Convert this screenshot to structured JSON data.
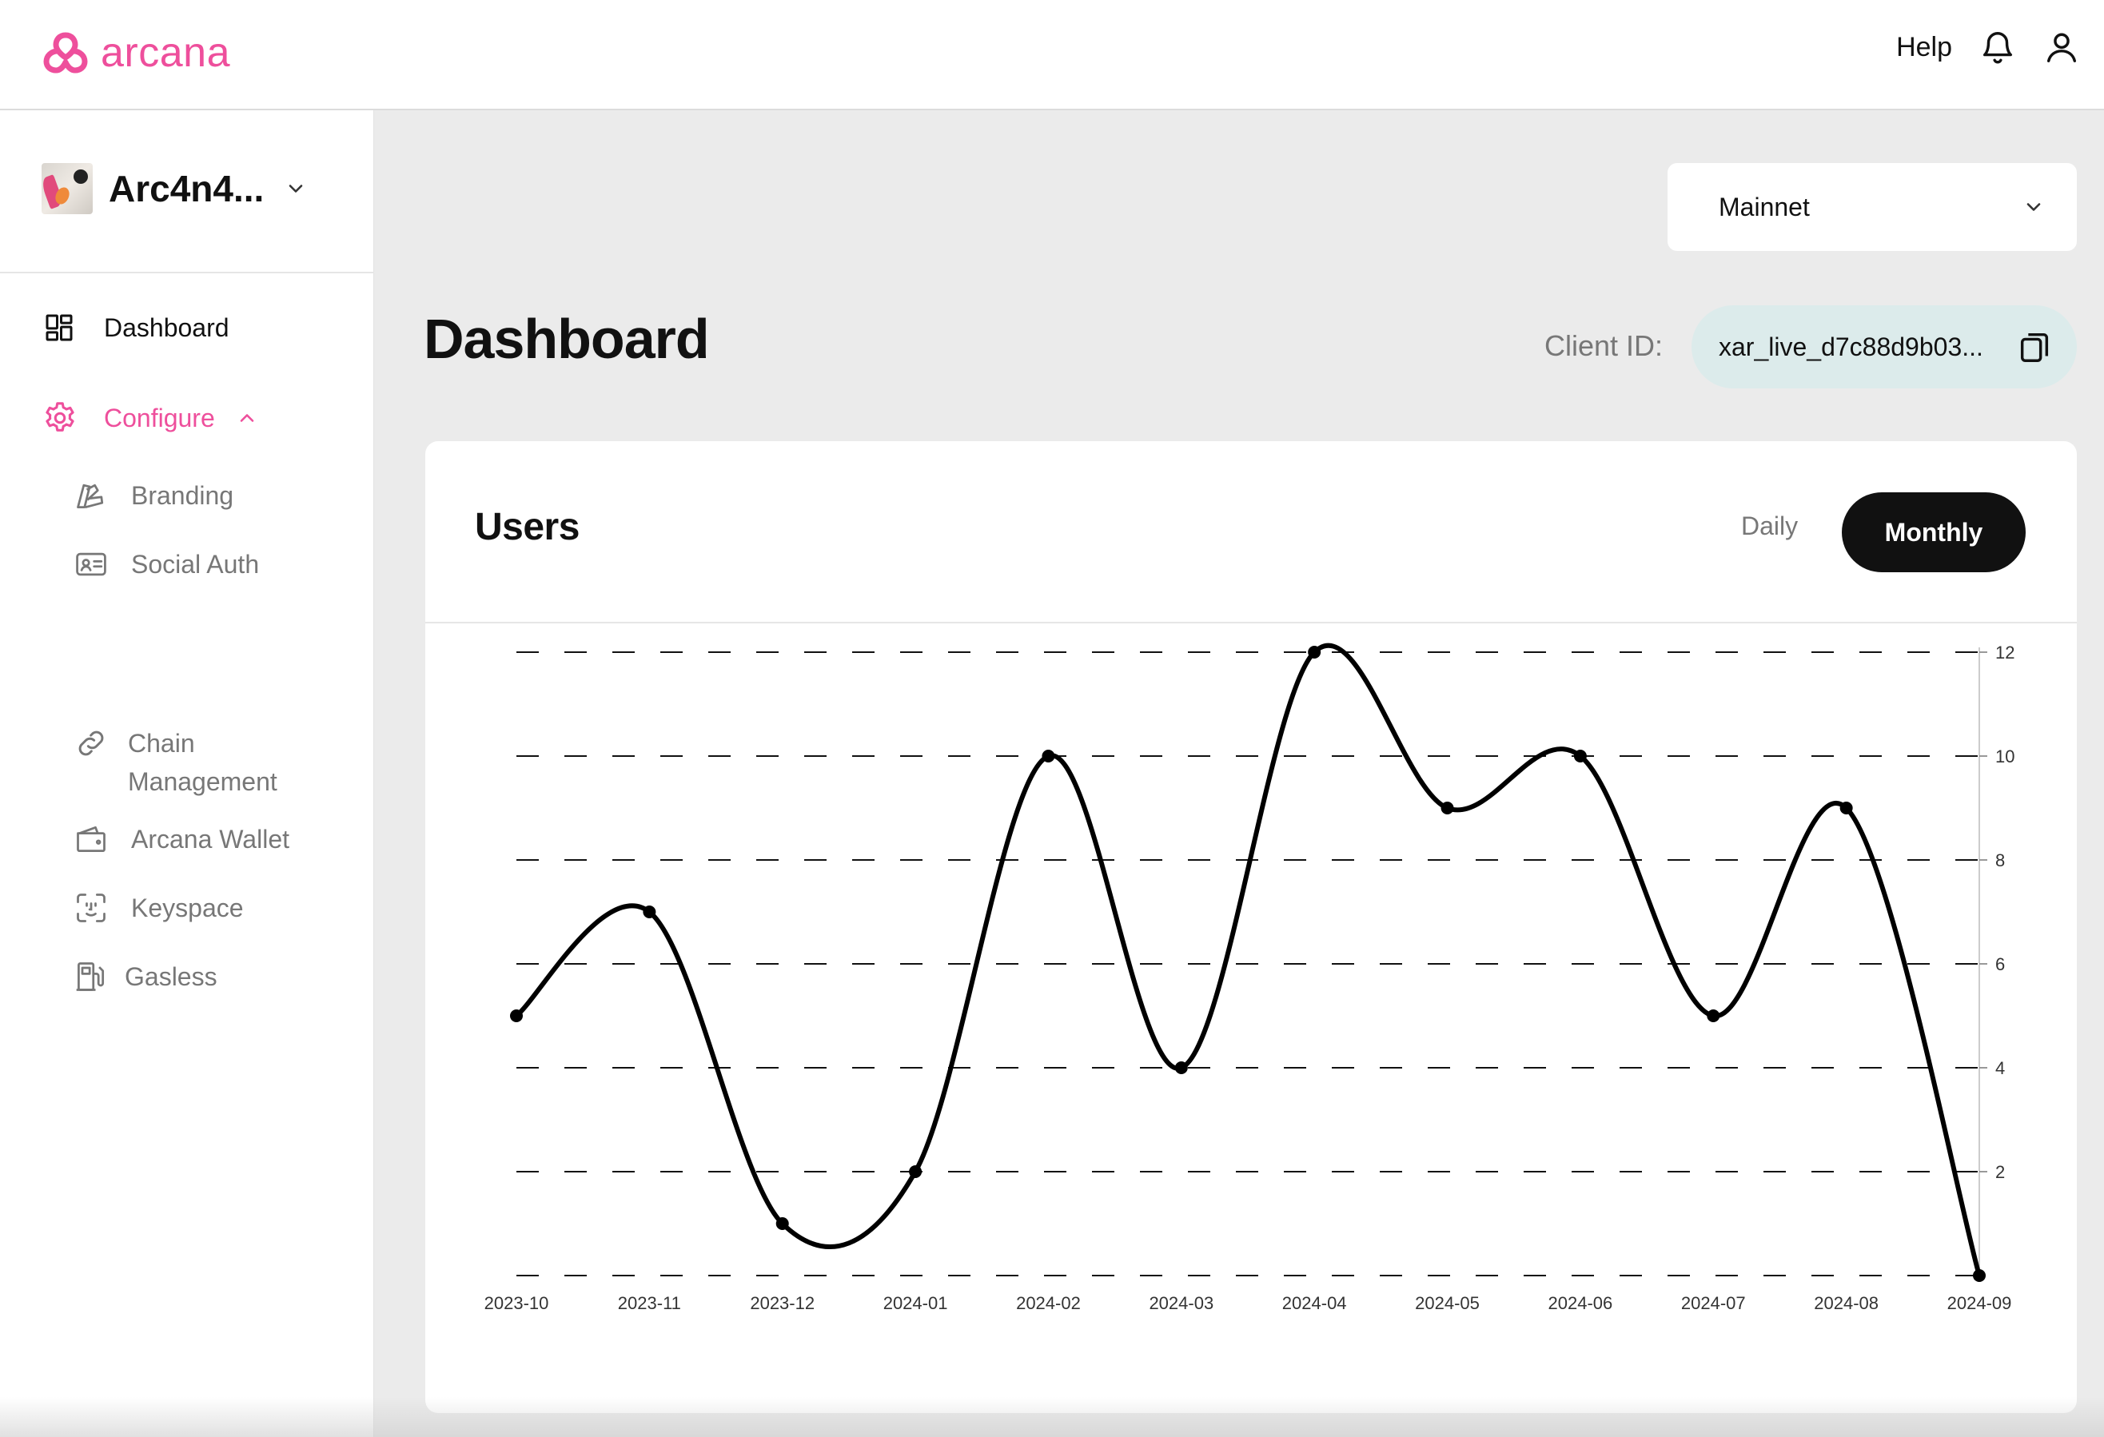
{
  "brand": {
    "name": "arcana",
    "color": "#ee4f9c"
  },
  "header": {
    "help_label": "Help",
    "icons": [
      "bell-icon",
      "user-icon"
    ]
  },
  "app": {
    "name": "Arc4n4...",
    "avatar": "app-avatar"
  },
  "sidebar": {
    "dashboard_label": "Dashboard",
    "configure_label": "Configure",
    "items": [
      {
        "label": "Branding",
        "icon": "branding-icon"
      },
      {
        "label": "Social Auth",
        "icon": "id-card-icon"
      },
      {
        "label": "Chain Management",
        "line1": "Chain",
        "line2": "Management",
        "icon": "link-icon"
      },
      {
        "label": "Arcana Wallet",
        "icon": "wallet-icon"
      },
      {
        "label": "Keyspace",
        "icon": "face-scan-icon"
      },
      {
        "label": "Gasless",
        "icon": "fuel-pump-icon"
      }
    ]
  },
  "network": {
    "selected": "Mainnet"
  },
  "page": {
    "title": "Dashboard"
  },
  "client": {
    "label": "Client ID:",
    "value": "xar_live_d7c88d9b03..."
  },
  "users_card": {
    "title": "Users",
    "toggle_daily": "Daily",
    "toggle_monthly": "Monthly",
    "active_toggle": "Monthly"
  },
  "chart_data": {
    "type": "line",
    "title": "Users",
    "categories": [
      "2023-10",
      "2023-11",
      "2023-12",
      "2024-01",
      "2024-02",
      "2024-03",
      "2024-04",
      "2024-05",
      "2024-06",
      "2024-07",
      "2024-08",
      "2024-09"
    ],
    "series": [
      {
        "values": [
          5,
          7,
          1,
          2,
          10,
          4,
          12,
          9,
          10,
          5,
          9,
          0
        ]
      }
    ],
    "ylim": [
      0,
      12
    ],
    "yticks": [
      2,
      4,
      6,
      8,
      10,
      12
    ],
    "y_axis_side": "right",
    "grid": "dashed-horizontal",
    "curve": "smooth",
    "line_color": "#000000"
  }
}
